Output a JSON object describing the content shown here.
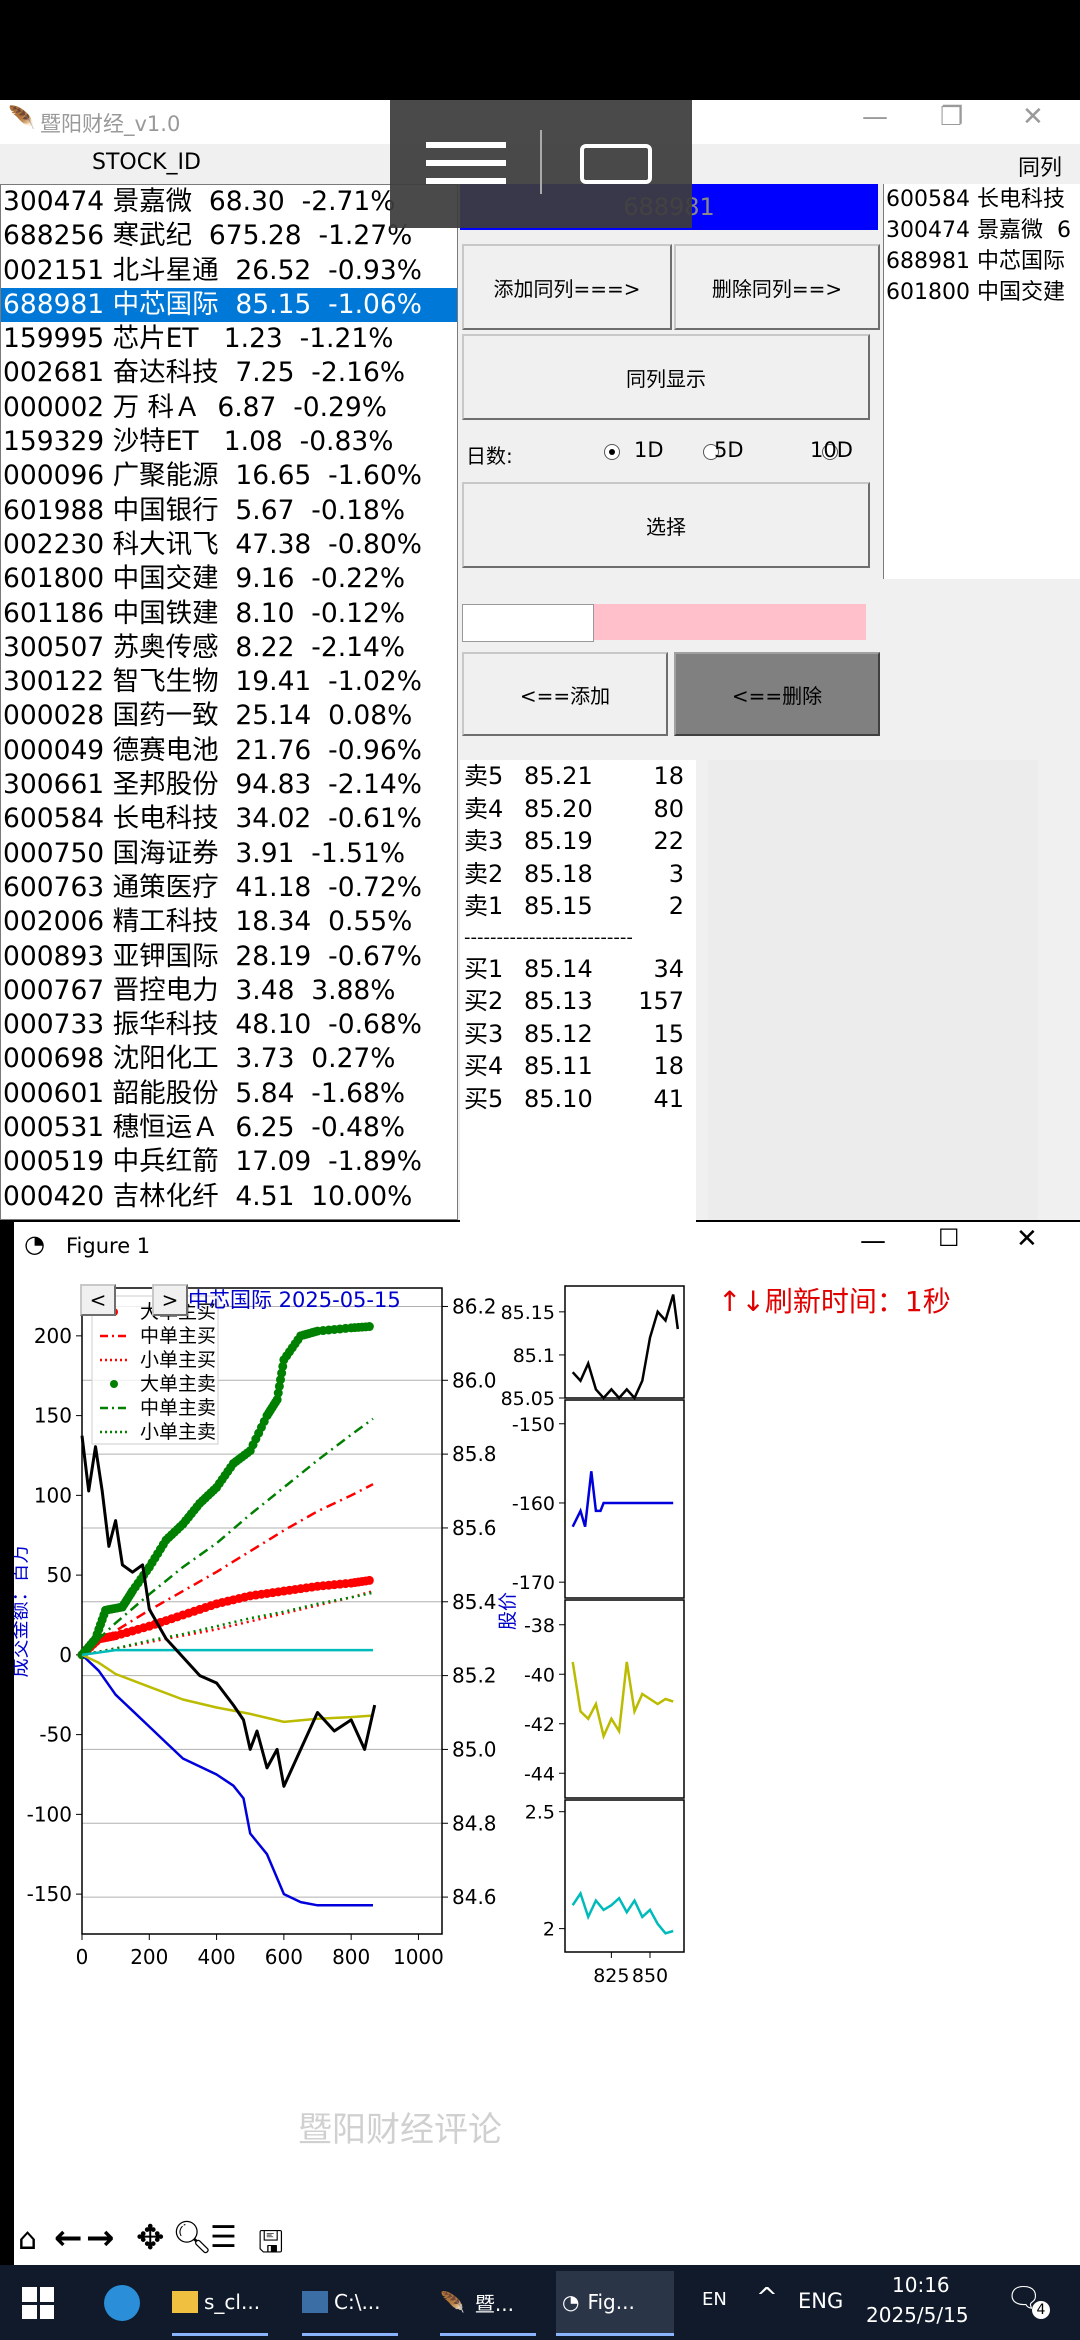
{
  "app": {
    "title": "暨阳财经_v1.0",
    "col_header": "STOCK_ID",
    "group_header": "同列列",
    "code_input": "688981",
    "buttons": {
      "add_group": "添加同列===>",
      "del_group": "删除同列==>",
      "show_group": "同列显示",
      "select": "选择",
      "add": "<==添加",
      "delete": "<==删除"
    },
    "days_label": "日数:",
    "day_options": [
      "1D",
      "5D",
      "10D"
    ],
    "day_selected": "1D"
  },
  "stocks": [
    "300474 景嘉微  68.30  -2.71%",
    "688256 寒武纪  675.28  -1.27%",
    "002151 北斗星通  26.52  -0.93%",
    "688981 中芯国际  85.15  -1.06%",
    "159995 芯片ET   1.23  -1.21%",
    "002681 奋达科技  7.25  -2.16%",
    "000002 万 科Ａ  6.87  -0.29%",
    "159329 沙特ET   1.08  -0.83%",
    "000096 广聚能源  16.65  -1.60%",
    "601988 中国银行  5.67  -0.18%",
    "002230 科大讯飞  47.38  -0.80%",
    "601800 中国交建  9.16  -0.22%",
    "601186 中国铁建  8.10  -0.12%",
    "300507 苏奥传感  8.22  -2.14%",
    "300122 智飞生物  19.41  -1.02%",
    "000028 国药一致  25.14  0.08%",
    "000049 德赛电池  21.76  -0.96%",
    "300661 圣邦股份  94.83  -2.14%",
    "600584 长电科技  34.02  -0.61%",
    "000750 国海证券  3.91  -1.51%",
    "600763 通策医疗  41.18  -0.72%",
    "002006 精工科技  18.34  0.55%",
    "000893 亚钾国际  28.19  -0.67%",
    "000767 晋控电力  3.48  3.88%",
    "000733 振华科技  48.10  -0.68%",
    "000698 沈阳化工  3.73  0.27%",
    "000601 韶能股份  5.84  -1.68%",
    "000531 穗恒运Ａ  6.25  -0.48%",
    "000519 中兵红箭  17.09  -1.89%",
    "000420 吉林化纤  4.51  10.00%"
  ],
  "selected_stock_index": 3,
  "group_list": [
    "600584 长电科技",
    "300474 景嘉微  6",
    "688981 中芯国际",
    "601800 中国交建"
  ],
  "orderbook": {
    "asks": [
      {
        "label": "卖5",
        "price": "85.21",
        "vol": "18"
      },
      {
        "label": "卖4",
        "price": "85.20",
        "vol": "80"
      },
      {
        "label": "卖3",
        "price": "85.19",
        "vol": "22"
      },
      {
        "label": "卖2",
        "price": "85.18",
        "vol": "3"
      },
      {
        "label": "卖1",
        "price": "85.15",
        "vol": "2"
      }
    ],
    "divider": "--------------------------",
    "bids": [
      {
        "label": "买1",
        "price": "85.14",
        "vol": "34"
      },
      {
        "label": "买2",
        "price": "85.13",
        "vol": "157"
      },
      {
        "label": "买3",
        "price": "85.12",
        "vol": "15"
      },
      {
        "label": "买4",
        "price": "85.11",
        "vol": "18"
      },
      {
        "label": "买5",
        "price": "85.10",
        "vol": "41"
      }
    ]
  },
  "figure": {
    "window_title": "Figure 1",
    "chart_title": "中芯国际  2025-05-15",
    "refresh_text": "↑↓刷新时间：1秒",
    "watermark": "暨阳财经评论",
    "prev": "<",
    "next": ">"
  },
  "chart_data": [
    {
      "type": "line",
      "title": "中芯国际  2025-05-15",
      "xlabel": "",
      "ylabel": "成交金额：百万",
      "y2label": "股价",
      "xlim": [
        0,
        1070
      ],
      "ylim": [
        -175,
        230
      ],
      "y2lim": [
        84.5,
        86.25
      ],
      "xticks": [
        0,
        200,
        400,
        600,
        800,
        1000
      ],
      "yticks": [
        -150,
        -100,
        -50,
        0,
        50,
        100,
        150,
        200
      ],
      "y2ticks": [
        84.6,
        84.8,
        85.0,
        85.2,
        85.4,
        85.6,
        85.8,
        86.0,
        86.2
      ],
      "legend": [
        "大单主买",
        "中单主买",
        "小单主买",
        "大单主卖",
        "中单主卖",
        "小单主卖"
      ],
      "legend_position": "top-left",
      "series": [
        {
          "name": "大单主买",
          "color": "#ff0000",
          "style": "dots",
          "x": [
            0,
            50,
            100,
            200,
            300,
            400,
            500,
            600,
            700,
            800,
            865
          ],
          "y": [
            0,
            10,
            12,
            18,
            25,
            32,
            37,
            40,
            43,
            45,
            47
          ]
        },
        {
          "name": "中单主买",
          "color": "#ff0000",
          "style": "dashdot",
          "x": [
            0,
            100,
            200,
            300,
            400,
            500,
            600,
            700,
            800,
            865
          ],
          "y": [
            0,
            15,
            28,
            40,
            52,
            65,
            78,
            90,
            100,
            107
          ]
        },
        {
          "name": "小单主买",
          "color": "#ff0000",
          "style": "dotted",
          "x": [
            0,
            100,
            200,
            300,
            400,
            500,
            600,
            700,
            800,
            865
          ],
          "y": [
            0,
            4,
            8,
            12,
            16,
            21,
            26,
            31,
            36,
            40
          ]
        },
        {
          "name": "大单主卖",
          "color": "#008000",
          "style": "dots",
          "x": [
            0,
            40,
            70,
            120,
            150,
            200,
            250,
            300,
            350,
            400,
            450,
            500,
            550,
            580,
            600,
            650,
            700,
            800,
            865
          ],
          "y": [
            0,
            10,
            28,
            30,
            40,
            55,
            72,
            82,
            95,
            105,
            120,
            128,
            150,
            160,
            185,
            200,
            203,
            205,
            206
          ]
        },
        {
          "name": "中单主卖",
          "color": "#008000",
          "style": "dashdot",
          "x": [
            0,
            100,
            200,
            300,
            400,
            500,
            600,
            700,
            800,
            865
          ],
          "y": [
            0,
            20,
            38,
            55,
            70,
            88,
            105,
            122,
            138,
            148
          ]
        },
        {
          "name": "小单主卖",
          "color": "#008000",
          "style": "dotted",
          "x": [
            0,
            100,
            200,
            300,
            400,
            500,
            600,
            700,
            800,
            865
          ],
          "y": [
            0,
            4,
            9,
            13,
            18,
            23,
            27,
            32,
            36,
            39
          ]
        },
        {
          "name": "",
          "color": "#0000dd",
          "style": "line",
          "x": [
            0,
            50,
            100,
            150,
            200,
            250,
            300,
            350,
            400,
            450,
            480,
            500,
            550,
            600,
            650,
            700,
            800,
            865
          ],
          "y": [
            0,
            -10,
            -25,
            -35,
            -45,
            -55,
            -65,
            -70,
            -75,
            -82,
            -90,
            -112,
            -125,
            -150,
            -155,
            -157,
            -157,
            -157
          ]
        },
        {
          "name": "",
          "color": "#bbbb00",
          "style": "line",
          "x": [
            0,
            50,
            100,
            200,
            300,
            400,
            500,
            600,
            700,
            800,
            865
          ],
          "y": [
            0,
            -5,
            -12,
            -20,
            -28,
            -33,
            -37,
            -42,
            -40,
            -39,
            -38
          ]
        },
        {
          "name": "",
          "color": "#00bbbb",
          "style": "line",
          "x": [
            0,
            100,
            200,
            300,
            400,
            500,
            600,
            700,
            800,
            865
          ],
          "y": [
            0,
            3,
            3,
            3,
            3,
            3,
            3,
            3,
            3,
            3
          ]
        },
        {
          "name": "",
          "color": "#000000",
          "style": "price",
          "x": [
            0,
            20,
            40,
            60,
            80,
            100,
            120,
            150,
            180,
            200,
            250,
            300,
            350,
            400,
            450,
            480,
            500,
            520,
            550,
            580,
            600,
            650,
            700,
            750,
            800,
            840,
            870
          ],
          "y2": [
            85.85,
            85.7,
            85.82,
            85.7,
            85.55,
            85.62,
            85.5,
            85.48,
            85.5,
            85.38,
            85.3,
            85.25,
            85.2,
            85.18,
            85.12,
            85.08,
            85.0,
            85.05,
            84.95,
            85.0,
            84.9,
            85.0,
            85.1,
            85.05,
            85.08,
            85.0,
            85.12
          ]
        }
      ]
    },
    {
      "type": "line",
      "xticks": [
        825,
        850
      ],
      "panels": [
        {
          "color": "#000000",
          "yticks": [
            85.05,
            85.1,
            85.15
          ],
          "ylim": [
            85.05,
            85.18
          ],
          "x": [
            800,
            805,
            810,
            815,
            820,
            825,
            830,
            835,
            840,
            845,
            850,
            855,
            860,
            865,
            868
          ],
          "y": [
            85.08,
            85.07,
            85.09,
            85.06,
            85.05,
            85.06,
            85.05,
            85.06,
            85.05,
            85.07,
            85.12,
            85.15,
            85.14,
            85.17,
            85.13
          ]
        },
        {
          "color": "#0000dd",
          "yticks": [
            -150,
            -160,
            -170
          ],
          "ylim": [
            -172,
            -147
          ],
          "x": [
            800,
            805,
            808,
            812,
            815,
            818,
            820,
            825,
            830,
            850,
            865
          ],
          "y": [
            -163,
            -161,
            -163,
            -156,
            -161,
            -161,
            -160,
            -160,
            -160,
            -160,
            -160
          ]
        },
        {
          "color": "#bbbb00",
          "yticks": [
            -38,
            -40,
            -42,
            -44
          ],
          "ylim": [
            -45,
            -37
          ],
          "x": [
            800,
            805,
            810,
            815,
            820,
            825,
            830,
            835,
            840,
            845,
            850,
            855,
            860,
            865
          ],
          "y": [
            -39.5,
            -41.5,
            -41.8,
            -41.2,
            -42.5,
            -41.8,
            -42.3,
            -39.5,
            -41.5,
            -40.8,
            -41.0,
            -41.2,
            -41.0,
            -41.1
          ]
        },
        {
          "color": "#00bbbb",
          "yticks": [
            2.0,
            2.5
          ],
          "ylim": [
            1.9,
            2.55
          ],
          "x": [
            800,
            805,
            810,
            815,
            820,
            825,
            830,
            835,
            840,
            845,
            850,
            855,
            860,
            865
          ],
          "y": [
            2.1,
            2.15,
            2.05,
            2.12,
            2.08,
            2.1,
            2.13,
            2.07,
            2.12,
            2.05,
            2.08,
            2.02,
            1.98,
            1.99
          ]
        }
      ]
    }
  ],
  "taskbar": {
    "apps": [
      "s_cl...",
      "C:\\...",
      "暨...",
      "Fig..."
    ],
    "lang1": "EN",
    "lang2": "ENG",
    "time": "10:16",
    "date": "2025/5/15",
    "notifications": "4"
  }
}
